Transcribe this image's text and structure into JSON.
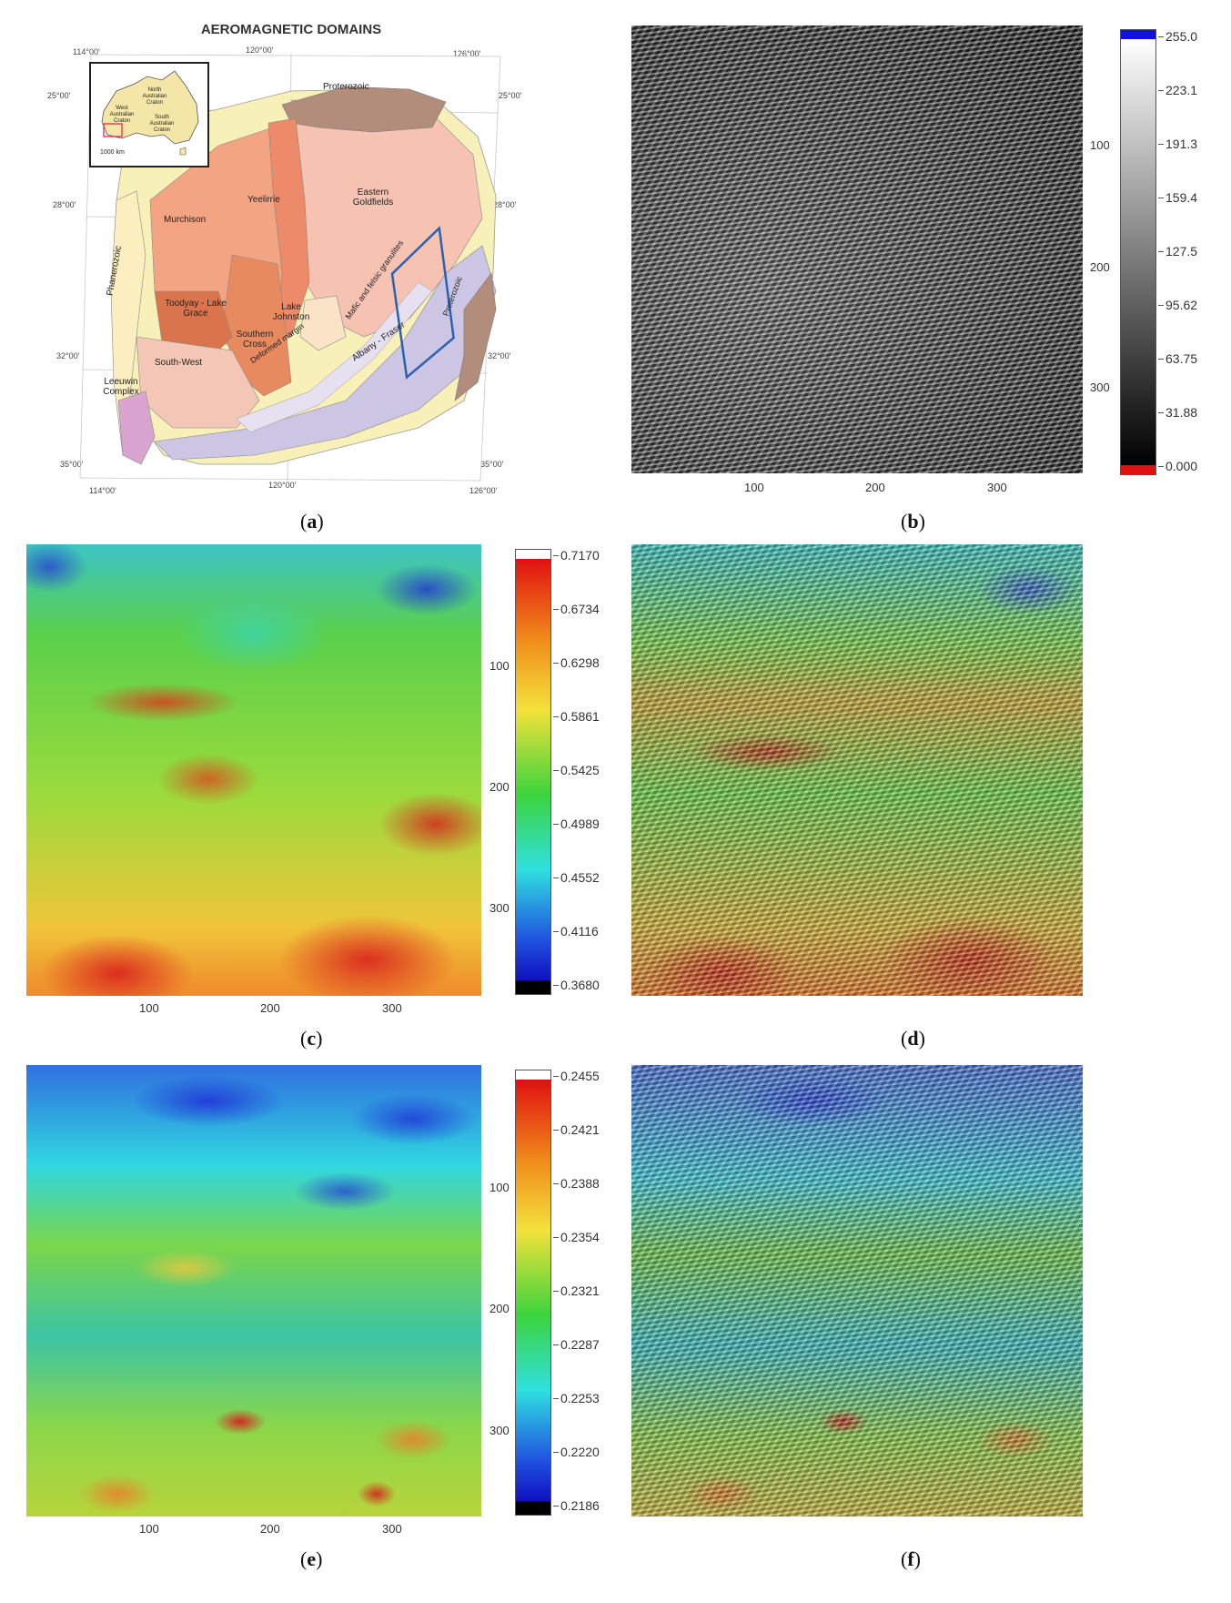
{
  "captions": [
    "a",
    "b",
    "c",
    "d",
    "e",
    "f"
  ],
  "panel_a": {
    "title": "AEROMAGNETIC DOMAINS",
    "coords_top": [
      "114°00'",
      "120°00'",
      "126°00'"
    ],
    "coords_bottom": [
      "114°00'",
      "120°00'",
      "126°00'"
    ],
    "coords_left": [
      "25°00'",
      "28°00'",
      "32°00'",
      "35°00'"
    ],
    "coords_right": [
      "25°00'",
      "28°00'",
      "32°00'",
      "35°00'"
    ],
    "regions": [
      "Proterozoic",
      "Eastern Goldfields",
      "Yeelirrie",
      "Murchison",
      "Phanerozoic",
      "Toodyay - Lake Grace",
      "Lake Johnston",
      "Southern Cross",
      "South-West",
      "Leeuwin Complex",
      "Albany - Fraser",
      "Mafic and felsic granulites",
      "Deformed margin",
      "Proterozoic"
    ],
    "inset": {
      "labels": [
        "North Australian Craton",
        "West Australian Craton",
        "South Australian Craton"
      ],
      "scale": "1000 km"
    }
  },
  "panel_b": {
    "x_ticks": [
      "100",
      "200",
      "300"
    ],
    "y_ticks": [
      "100",
      "200",
      "300"
    ],
    "colorbar": [
      "255.0",
      "223.1",
      "191.3",
      "159.4",
      "127.5",
      "95.62",
      "63.75",
      "31.88",
      "0.000"
    ]
  },
  "panel_c": {
    "x_ticks": [
      "100",
      "200",
      "300"
    ],
    "y_ticks": [
      "100",
      "200",
      "300"
    ],
    "colorbar": [
      "0.7170",
      "0.6734",
      "0.6298",
      "0.5861",
      "0.5425",
      "0.4989",
      "0.4552",
      "0.4116",
      "0.3680"
    ]
  },
  "panel_e": {
    "x_ticks": [
      "100",
      "200",
      "300"
    ],
    "y_ticks": [
      "100",
      "200",
      "300"
    ],
    "colorbar": [
      "0.2455",
      "0.2421",
      "0.2388",
      "0.2354",
      "0.2321",
      "0.2287",
      "0.2253",
      "0.2220",
      "0.2186"
    ]
  },
  "colors": {
    "high": "#d7191c",
    "mid_high": "#f6e13a",
    "mid": "#3cc43c",
    "mid_low": "#2fd6e0",
    "low": "#2030d8"
  }
}
